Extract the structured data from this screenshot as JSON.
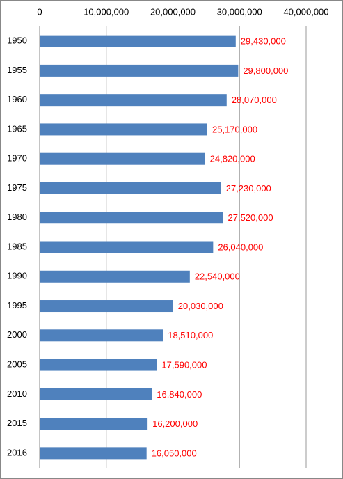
{
  "chart_data": {
    "type": "bar",
    "orientation": "horizontal",
    "categories": [
      "1950",
      "1955",
      "1960",
      "1965",
      "1970",
      "1975",
      "1980",
      "1985",
      "1990",
      "1995",
      "2000",
      "2005",
      "2010",
      "2015",
      "2016"
    ],
    "values": [
      29430000,
      29800000,
      28070000,
      25170000,
      24820000,
      27230000,
      27520000,
      26040000,
      22540000,
      20030000,
      18510000,
      17590000,
      16840000,
      16200000,
      16050000
    ],
    "value_labels": [
      "29,430,000",
      "29,800,000",
      "28,070,000",
      "25,170,000",
      "24,820,000",
      "27,230,000",
      "27,520,000",
      "26,040,000",
      "22,540,000",
      "20,030,000",
      "18,510,000",
      "17,590,000",
      "16,840,000",
      "16,200,000",
      "16,050,000"
    ],
    "color": "#4f81bd",
    "value_label_color": "#ff0000",
    "xlim": [
      0,
      40000000
    ],
    "xticks": [
      0,
      {
        "value": 10000000,
        "label": "10,000,000"
      },
      {
        "value": 20000000,
        "label": "20,000,000"
      },
      {
        "value": 30000000,
        "label": "30,000,000"
      },
      {
        "value": 40000000,
        "label": "40,000,000"
      }
    ],
    "grid": true
  }
}
